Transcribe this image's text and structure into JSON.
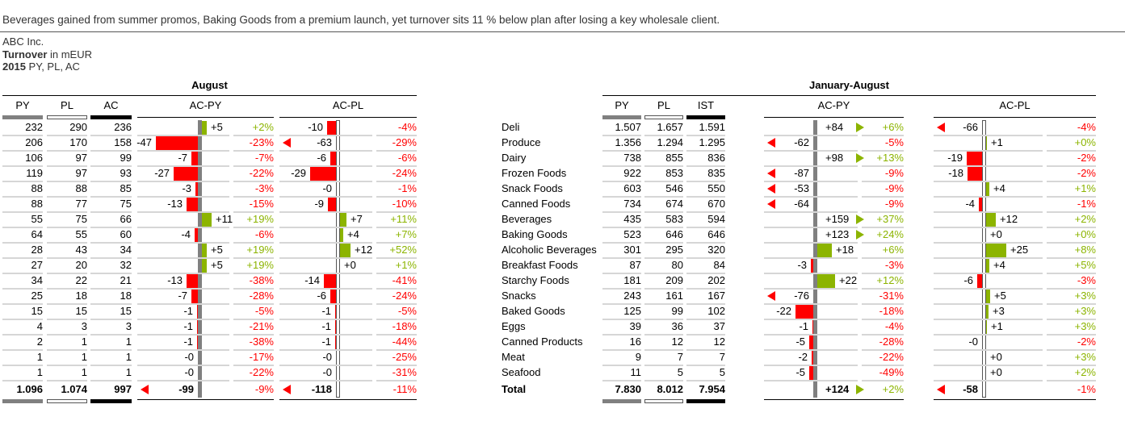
{
  "headline": "Beverages gained from summer promos, Baking Goods from a premium launch, yet turnover sits 11 % below plan after losing a key wholesale client.",
  "meta": {
    "company": "ABC Inc.",
    "measure_bold": "Turnover",
    "measure_rest": " in mEUR",
    "year_bold": "2015",
    "year_rest": " PY, PL, AC"
  },
  "colors": {
    "positive": "#8cb400",
    "negative": "#ff0000",
    "py": "#808080",
    "ac": "#000000",
    "grid": "#d6d6d6"
  },
  "chart_data": {
    "type": "table",
    "title": "Turnover in mEUR",
    "sections": [
      {
        "title": "August",
        "columns": [
          "PY",
          "PL",
          "AC",
          "AC-PY",
          "AC-PL"
        ]
      },
      {
        "title": "January-August",
        "columns": [
          "PY",
          "PL",
          "IST",
          "AC-PY",
          "AC-PL"
        ]
      }
    ],
    "rows": [
      {
        "name": "Deli",
        "aug": [
          "232",
          "290",
          "236",
          "+5",
          "+2%",
          "-10",
          "-4%"
        ],
        "ytd": [
          "1.507",
          "1.657",
          "1.591",
          "+84",
          "+6%",
          "-66",
          "-4%"
        ]
      },
      {
        "name": "Produce",
        "aug": [
          "206",
          "170",
          "158",
          "-47",
          "-23%",
          "-63",
          "-29%"
        ],
        "ytd": [
          "1.356",
          "1.294",
          "1.295",
          "-62",
          "-5%",
          "+1",
          "+0%"
        ]
      },
      {
        "name": "Dairy",
        "aug": [
          "106",
          "97",
          "99",
          "-7",
          "-7%",
          "-6",
          "-6%"
        ],
        "ytd": [
          "738",
          "855",
          "836",
          "+98",
          "+13%",
          "-19",
          "-2%"
        ]
      },
      {
        "name": "Frozen Foods",
        "aug": [
          "119",
          "97",
          "93",
          "-27",
          "-22%",
          "-29",
          "-24%"
        ],
        "ytd": [
          "922",
          "853",
          "835",
          "-87",
          "-9%",
          "-18",
          "-2%"
        ]
      },
      {
        "name": "Snack Foods",
        "aug": [
          "88",
          "88",
          "85",
          "-3",
          "-3%",
          "-0",
          "-1%"
        ],
        "ytd": [
          "603",
          "546",
          "550",
          "-53",
          "-9%",
          "+4",
          "+1%"
        ]
      },
      {
        "name": "Canned Foods",
        "aug": [
          "88",
          "77",
          "75",
          "-13",
          "-15%",
          "-9",
          "-10%"
        ],
        "ytd": [
          "734",
          "674",
          "670",
          "-64",
          "-9%",
          "-4",
          "-1%"
        ]
      },
      {
        "name": "Beverages",
        "aug": [
          "55",
          "75",
          "66",
          "+11",
          "+19%",
          "+7",
          "+11%"
        ],
        "ytd": [
          "435",
          "583",
          "594",
          "+159",
          "+37%",
          "+12",
          "+2%"
        ]
      },
      {
        "name": "Baking Goods",
        "aug": [
          "64",
          "55",
          "60",
          "-4",
          "-6%",
          "+4",
          "+7%"
        ],
        "ytd": [
          "523",
          "646",
          "646",
          "+123",
          "+24%",
          "+0",
          "+0%"
        ]
      },
      {
        "name": "Alcoholic Beverages",
        "aug": [
          "28",
          "43",
          "34",
          "+5",
          "+19%",
          "+12",
          "+52%"
        ],
        "ytd": [
          "301",
          "295",
          "320",
          "+18",
          "+6%",
          "+25",
          "+8%"
        ]
      },
      {
        "name": "Breakfast Foods",
        "aug": [
          "27",
          "20",
          "32",
          "+5",
          "+19%",
          "+0",
          "+1%"
        ],
        "ytd": [
          "87",
          "80",
          "84",
          "-3",
          "-3%",
          "+4",
          "+5%"
        ]
      },
      {
        "name": "Starchy Foods",
        "aug": [
          "34",
          "22",
          "21",
          "-13",
          "-38%",
          "-14",
          "-41%"
        ],
        "ytd": [
          "181",
          "209",
          "202",
          "+22",
          "+12%",
          "-6",
          "-3%"
        ]
      },
      {
        "name": "Snacks",
        "aug": [
          "25",
          "18",
          "18",
          "-7",
          "-28%",
          "-6",
          "-24%"
        ],
        "ytd": [
          "243",
          "161",
          "167",
          "-76",
          "-31%",
          "+5",
          "+3%"
        ]
      },
      {
        "name": "Baked Goods",
        "aug": [
          "15",
          "15",
          "15",
          "-1",
          "-5%",
          "-1",
          "-5%"
        ],
        "ytd": [
          "125",
          "99",
          "102",
          "-22",
          "-18%",
          "+3",
          "+3%"
        ]
      },
      {
        "name": "Eggs",
        "aug": [
          "4",
          "3",
          "3",
          "-1",
          "-21%",
          "-1",
          "-18%"
        ],
        "ytd": [
          "39",
          "36",
          "37",
          "-1",
          "-4%",
          "+1",
          "+3%"
        ]
      },
      {
        "name": "Canned Products",
        "aug": [
          "2",
          "1",
          "1",
          "-1",
          "-38%",
          "-1",
          "-44%"
        ],
        "ytd": [
          "16",
          "12",
          "12",
          "-5",
          "-28%",
          "-0",
          "-2%"
        ]
      },
      {
        "name": "Meat",
        "aug": [
          "1",
          "1",
          "1",
          "-0",
          "-17%",
          "-0",
          "-25%"
        ],
        "ytd": [
          "9",
          "7",
          "7",
          "-2",
          "-22%",
          "+0",
          "+3%"
        ]
      },
      {
        "name": "Seafood",
        "aug": [
          "1",
          "1",
          "1",
          "-0",
          "-22%",
          "-0",
          "-31%"
        ],
        "ytd": [
          "11",
          "5",
          "5",
          "-5",
          "-49%",
          "+0",
          "+2%"
        ]
      }
    ],
    "total": {
      "name": "Total",
      "aug": [
        "1.096",
        "1.074",
        "997",
        "-99",
        "-9%",
        "-118",
        "-11%"
      ],
      "ytd": [
        "7.830",
        "8.012",
        "7.954",
        "+124",
        "+2%",
        "-58",
        "-1%"
      ]
    }
  }
}
